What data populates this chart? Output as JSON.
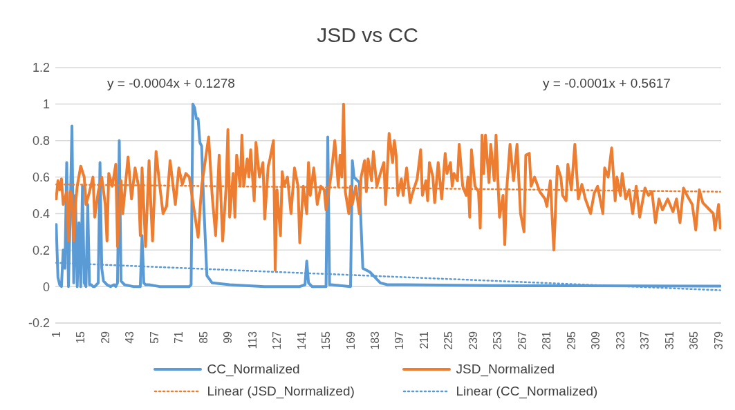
{
  "chart_data": {
    "type": "line",
    "title": "JSD vs CC",
    "xlim": [
      0.5,
      380.5
    ],
    "xticks": [
      1,
      15,
      29,
      43,
      57,
      71,
      85,
      99,
      113,
      127,
      141,
      155,
      169,
      183,
      197,
      211,
      225,
      239,
      253,
      267,
      281,
      295,
      309,
      323,
      337,
      351,
      365,
      379
    ],
    "ylim": [
      -0.2,
      1.2
    ],
    "yticks": [
      -0.2,
      0,
      0.2,
      0.4,
      0.6,
      0.8,
      1,
      1.2
    ],
    "grid": "y",
    "legend": "bottom",
    "marker": "none",
    "annotations": [
      "y = -0.0004x + 0.1278",
      "y = -0.0001x + 0.5617"
    ],
    "series": [
      {
        "name": "CC_Normalized",
        "color": "#5b9bd5",
        "line_style": "solid",
        "x": [
          1,
          2,
          3,
          4,
          5,
          6,
          7,
          8,
          9,
          10,
          11,
          12,
          13,
          14,
          15,
          16,
          17,
          18,
          19,
          20,
          21,
          22,
          23,
          24,
          25,
          26,
          27,
          28,
          30,
          32,
          34,
          35,
          36,
          37,
          38,
          40,
          45,
          49,
          50,
          51,
          52,
          54,
          60,
          70,
          77,
          78,
          79,
          80,
          81,
          82,
          83,
          84,
          85,
          86,
          87,
          90,
          100,
          120,
          140,
          143,
          144,
          145,
          146,
          147,
          155,
          156,
          157,
          158,
          169,
          170,
          171,
          173,
          174,
          176,
          180,
          183,
          186,
          190,
          200,
          250,
          300,
          380
        ],
        "values": [
          0.34,
          0.05,
          0.01,
          0,
          0.2,
          0.1,
          0.68,
          0,
          0.4,
          0.88,
          0.02,
          0.5,
          0,
          0.35,
          0,
          0.55,
          0.02,
          0,
          0.45,
          0.01,
          0.01,
          0,
          0,
          0.01,
          0.02,
          0.68,
          0.1,
          0.03,
          0.01,
          0,
          0.01,
          0,
          0.02,
          0.8,
          0.03,
          0.01,
          0,
          0,
          0.28,
          0.02,
          0.01,
          0.01,
          0,
          0,
          0,
          0.01,
          1,
          0.98,
          0.92,
          0.92,
          0.79,
          0.77,
          0.5,
          0.28,
          0.06,
          0.02,
          0.01,
          0,
          0,
          0.01,
          0.14,
          0.02,
          0.01,
          0,
          0,
          0.82,
          0.01,
          0.01,
          0,
          0.69,
          0.6,
          0.58,
          0.57,
          0.1,
          0.08,
          0.05,
          0.02,
          0.01,
          0.01,
          0.005,
          0.004,
          0.002
        ]
      },
      {
        "name": "JSD_Normalized",
        "color": "#ed7d31",
        "line_style": "solid",
        "x": [
          1,
          2,
          3,
          4,
          5,
          7,
          8,
          9,
          10,
          11,
          12,
          13,
          15,
          17,
          18,
          20,
          22,
          23,
          25,
          27,
          29,
          30,
          31,
          33,
          35,
          36,
          38,
          39,
          42,
          44,
          46,
          48,
          49,
          50,
          52,
          54,
          55,
          56,
          58,
          60,
          62,
          64,
          66,
          69,
          71,
          73,
          75,
          77,
          78,
          82,
          84,
          88,
          90,
          92,
          94,
          96,
          98,
          99,
          100,
          102,
          103,
          104,
          106,
          107,
          108,
          110,
          111,
          112,
          114,
          115,
          117,
          119,
          120,
          122,
          123,
          125,
          126,
          127,
          129,
          130,
          131,
          133,
          135,
          137,
          139,
          140,
          142,
          144,
          145,
          146,
          148,
          150,
          152,
          154,
          155,
          158,
          160,
          162,
          163,
          164,
          165,
          166,
          168,
          169,
          170,
          172,
          174,
          175,
          177,
          178,
          179,
          181,
          182,
          184,
          186,
          188,
          189,
          191,
          193,
          194,
          195,
          196,
          198,
          199,
          201,
          203,
          204,
          207,
          209,
          210,
          212,
          213,
          214,
          216,
          217,
          219,
          221,
          223,
          224,
          226,
          227,
          228,
          230,
          231,
          233,
          235,
          236,
          237,
          238,
          240,
          242,
          243,
          244,
          245,
          246,
          248,
          249,
          251,
          252,
          254,
          256,
          257,
          258,
          260,
          262,
          264,
          266,
          268,
          269,
          271,
          272,
          274,
          277,
          280,
          281,
          283,
          285,
          287,
          289,
          290,
          292,
          293,
          295,
          297,
          299,
          301,
          303,
          306,
          308,
          310,
          313,
          314,
          316,
          318,
          320,
          321,
          323,
          324,
          326,
          328,
          330,
          332,
          334,
          337,
          339,
          341,
          343,
          345,
          347,
          350,
          353,
          355,
          357,
          359,
          361,
          364,
          366,
          368,
          370,
          373,
          376,
          377,
          379,
          380
        ],
        "values": [
          0.48,
          0.58,
          0.53,
          0.59,
          0.45,
          0.52,
          0.25,
          0.52,
          0.5,
          0.25,
          0.45,
          0.55,
          0.66,
          0.6,
          0.45,
          0.52,
          0.6,
          0.38,
          0.52,
          0.6,
          0.45,
          0.25,
          0.62,
          0.55,
          0.67,
          0.22,
          0.58,
          0.4,
          0.71,
          0.48,
          0.65,
          0.55,
          0.28,
          0.65,
          0.22,
          0.69,
          0.45,
          0.25,
          0.74,
          0.56,
          0.4,
          0.44,
          0.69,
          0.45,
          0.65,
          0.56,
          0.62,
          0.6,
          0.53,
          0.27,
          0.55,
          0.82,
          0.5,
          0.28,
          0.72,
          0.25,
          0.55,
          0.86,
          0.38,
          0.62,
          0.38,
          0.72,
          0.55,
          0.83,
          0.55,
          0.7,
          0.6,
          0.75,
          0.47,
          0.79,
          0.6,
          0.68,
          0.37,
          0.66,
          0.7,
          0.8,
          0.09,
          0.53,
          0.28,
          0.63,
          0.55,
          0.6,
          0.4,
          0.65,
          0.55,
          0.24,
          0.55,
          0.4,
          0.68,
          0.5,
          0.65,
          0.45,
          0.55,
          0.53,
          0.42,
          0.62,
          0.8,
          0.55,
          0.72,
          0.6,
          1,
          0.52,
          0.4,
          0.55,
          0.45,
          0.55,
          0.4,
          0.6,
          0.69,
          0.52,
          0.7,
          0.58,
          0.74,
          0.55,
          0.62,
          0.68,
          0.45,
          0.84,
          0.68,
          0.8,
          0.72,
          0.5,
          0.59,
          0.5,
          0.65,
          0.46,
          0.5,
          0.59,
          0.75,
          0.5,
          0.58,
          0.47,
          0.68,
          0.6,
          0.46,
          0.68,
          0.48,
          0.73,
          0.62,
          0.68,
          0.55,
          0.62,
          0.58,
          0.78,
          0.55,
          0.5,
          0.6,
          0.38,
          0.75,
          0.55,
          0.52,
          0.32,
          0.83,
          0.62,
          0.83,
          0.57,
          0.78,
          0.58,
          0.83,
          0.38,
          0.5,
          0.23,
          0.52,
          0.78,
          0.58,
          0.78,
          0.4,
          0.3,
          0.72,
          0.73,
          0.55,
          0.6,
          0.52,
          0.48,
          0.44,
          0.58,
          0.2,
          0.66,
          0.6,
          0.5,
          0.47,
          0.67,
          0.53,
          0.78,
          0.48,
          0.56,
          0.48,
          0.4,
          0.51,
          0.55,
          0.4,
          0.65,
          0.6,
          0.76,
          0.47,
          0.6,
          0.5,
          0.62,
          0.48,
          0.53,
          0.4,
          0.55,
          0.38,
          0.54,
          0.5,
          0.52,
          0.35,
          0.48,
          0.42,
          0.48,
          0.41,
          0.48,
          0.35,
          0.54,
          0.5,
          0.45,
          0.31,
          0.53,
          0.46,
          0.43,
          0.4,
          0.31,
          0.45,
          0.32
        ]
      },
      {
        "name": "Linear (JSD_Normalized)",
        "color": "#ed7d31",
        "line_style": "dotted",
        "x": [
          1,
          380
        ],
        "values": [
          0.56,
          0.52
        ]
      },
      {
        "name": "Linear (CC_Normalized)",
        "color": "#5b9bd5",
        "line_style": "dotted",
        "x": [
          1,
          380
        ],
        "values": [
          0.13,
          -0.02
        ]
      }
    ]
  }
}
